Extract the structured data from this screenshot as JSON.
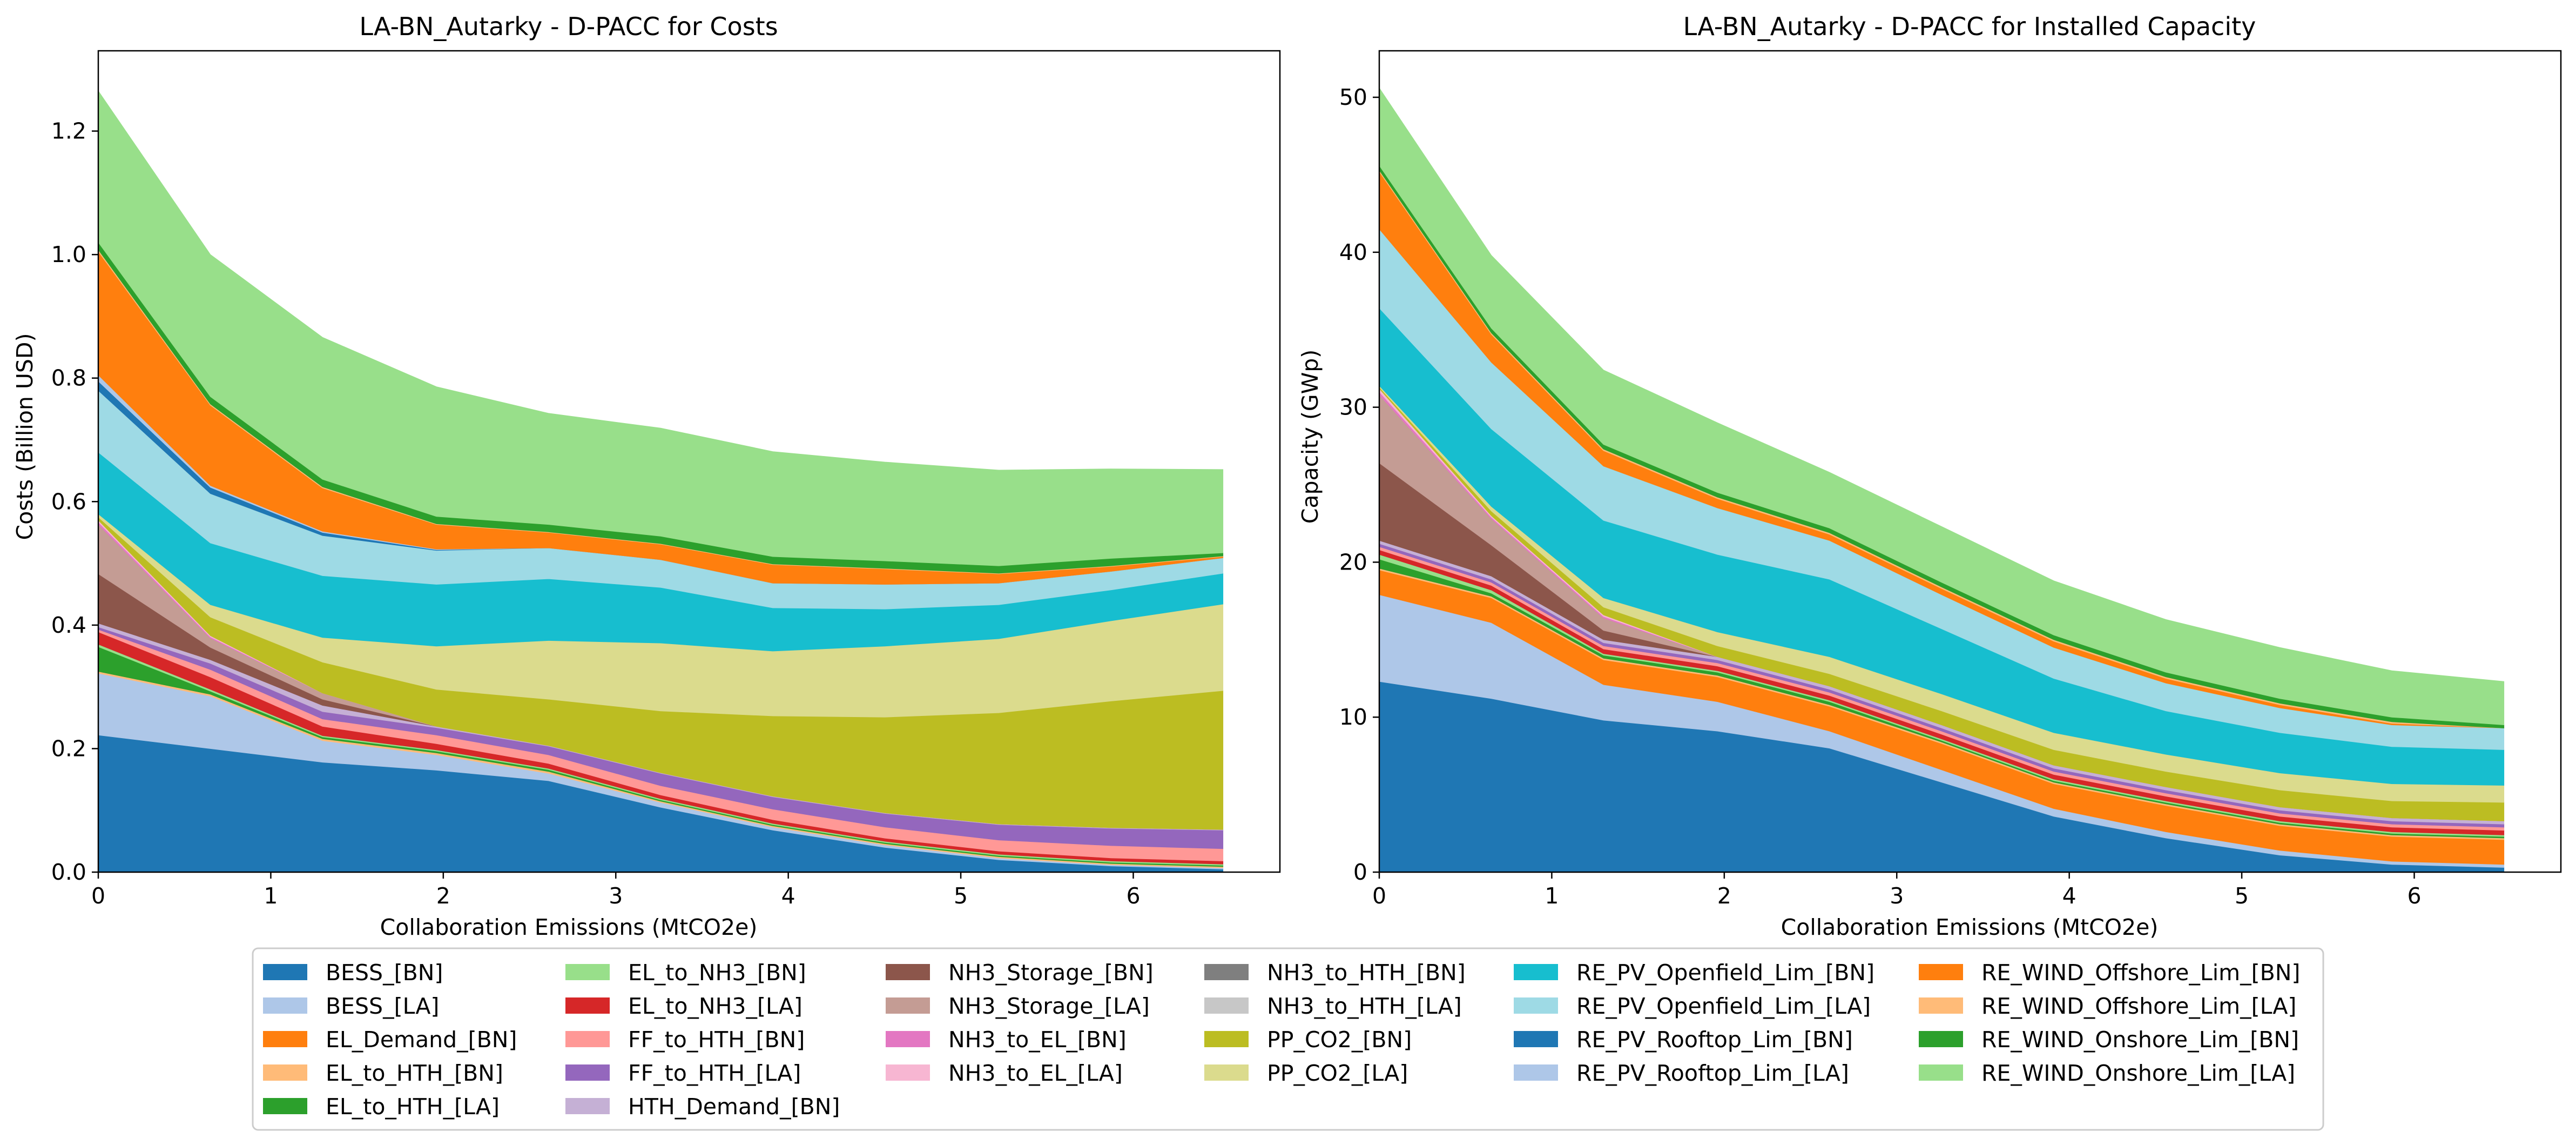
{
  "legend_entries": [
    {
      "label": "BESS_[BN]",
      "color": "#1f77b4"
    },
    {
      "label": "BESS_[LA]",
      "color": "#aec7e8"
    },
    {
      "label": "EL_Demand_[BN]",
      "color": "#ff7f0e"
    },
    {
      "label": "EL_to_HTH_[BN]",
      "color": "#ffbb78"
    },
    {
      "label": "EL_to_HTH_[LA]",
      "color": "#2ca02c"
    },
    {
      "label": "EL_to_NH3_[BN]",
      "color": "#98df8a"
    },
    {
      "label": "EL_to_NH3_[LA]",
      "color": "#d62728"
    },
    {
      "label": "FF_to_HTH_[BN]",
      "color": "#ff9896"
    },
    {
      "label": "FF_to_HTH_[LA]",
      "color": "#9467bd"
    },
    {
      "label": "HTH_Demand_[BN]",
      "color": "#c5b0d5"
    },
    {
      "label": "NH3_Storage_[BN]",
      "color": "#8c564b"
    },
    {
      "label": "NH3_Storage_[LA]",
      "color": "#c49c94"
    },
    {
      "label": "NH3_to_EL_[BN]",
      "color": "#e377c2"
    },
    {
      "label": "NH3_to_EL_[LA]",
      "color": "#f7b6d2"
    },
    {
      "label": "NH3_to_HTH_[BN]",
      "color": "#7f7f7f"
    },
    {
      "label": "NH3_to_HTH_[LA]",
      "color": "#c7c7c7"
    },
    {
      "label": "PP_CO2_[BN]",
      "color": "#bcbd22"
    },
    {
      "label": "PP_CO2_[LA]",
      "color": "#dbdb8d"
    },
    {
      "label": "RE_PV_Openfield_Lim_[BN]",
      "color": "#17becf"
    },
    {
      "label": "RE_PV_Openfield_Lim_[LA]",
      "color": "#9edae5"
    },
    {
      "label": "RE_PV_Rooftop_Lim_[BN]",
      "color": "#1f77b4"
    },
    {
      "label": "RE_PV_Rooftop_Lim_[LA]",
      "color": "#aec7e8"
    },
    {
      "label": "RE_WIND_Offshore_Lim_[BN]",
      "color": "#ff7f0e"
    },
    {
      "label": "RE_WIND_Offshore_Lim_[LA]",
      "color": "#ffbb78"
    },
    {
      "label": "RE_WIND_Onshore_Lim_[BN]",
      "color": "#2ca02c"
    },
    {
      "label": "RE_WIND_Onshore_Lim_[LA]",
      "color": "#98df8a"
    }
  ],
  "chart_data": [
    {
      "type": "area",
      "stacked": true,
      "title": "LA-BN_Autarky - D-PACC for Costs",
      "xlabel": "Collaboration Emissions (MtCO2e)",
      "ylabel": "Costs (Billion USD)",
      "xlim": [
        0,
        6.85
      ],
      "ylim": [
        0,
        1.33
      ],
      "xticks": [
        0,
        1,
        2,
        3,
        4,
        5,
        6
      ],
      "yticks": [
        0.0,
        0.2,
        0.4,
        0.6,
        0.8,
        1.0,
        1.2
      ],
      "x": [
        0,
        0.65,
        1.3,
        1.96,
        2.61,
        3.26,
        3.91,
        4.56,
        5.22,
        5.87,
        6.52
      ],
      "series": [
        {
          "name": "BESS_[BN]",
          "color": "#1f77b4",
          "values": [
            0.222,
            0.2,
            0.178,
            0.165,
            0.148,
            0.105,
            0.068,
            0.04,
            0.02,
            0.01,
            0.005
          ]
        },
        {
          "name": "BESS_[LA]",
          "color": "#aec7e8",
          "values": [
            0.1,
            0.085,
            0.035,
            0.025,
            0.012,
            0.008,
            0.005,
            0.004,
            0.003,
            0.002,
            0.002
          ]
        },
        {
          "name": "EL_Demand_[BN]",
          "color": "#ff7f0e",
          "values": [
            0,
            0,
            0,
            0,
            0,
            0,
            0,
            0,
            0,
            0,
            0
          ]
        },
        {
          "name": "EL_to_HTH_[BN]",
          "color": "#ffbb78",
          "values": [
            0.003,
            0.003,
            0.003,
            0.003,
            0.003,
            0.002,
            0.002,
            0.002,
            0.002,
            0.002,
            0.002
          ]
        },
        {
          "name": "EL_to_HTH_[LA]",
          "color": "#2ca02c",
          "values": [
            0.04,
            0.005,
            0.003,
            0.003,
            0.003,
            0.002,
            0.002,
            0.002,
            0.002,
            0.002,
            0.002
          ]
        },
        {
          "name": "EL_to_NH3_[BN]",
          "color": "#98df8a",
          "values": [
            0.004,
            0.003,
            0.002,
            0.002,
            0.002,
            0.002,
            0.002,
            0.002,
            0.002,
            0.002,
            0.002
          ]
        },
        {
          "name": "EL_to_NH3_[LA]",
          "color": "#d62728",
          "values": [
            0.02,
            0.02,
            0.015,
            0.01,
            0.008,
            0.006,
            0.006,
            0.005,
            0.005,
            0.005,
            0.005
          ]
        },
        {
          "name": "FF_to_HTH_[BN]",
          "color": "#ff9896",
          "values": [
            0.004,
            0.012,
            0.012,
            0.014,
            0.014,
            0.015,
            0.017,
            0.018,
            0.018,
            0.02,
            0.02
          ]
        },
        {
          "name": "FF_to_HTH_[LA]",
          "color": "#9467bd",
          "values": [
            0.004,
            0.01,
            0.012,
            0.012,
            0.014,
            0.02,
            0.02,
            0.022,
            0.025,
            0.028,
            0.03
          ]
        },
        {
          "name": "HTH_Demand_[BN]",
          "color": "#c5b0d5",
          "values": [
            0.006,
            0.006,
            0.01,
            0.002,
            0.001,
            0.001,
            0.001,
            0.001,
            0.001,
            0.001,
            0.001
          ]
        },
        {
          "name": "NH3_Storage_[BN]",
          "color": "#8c564b",
          "values": [
            0.08,
            0.02,
            0.01,
            0,
            0,
            0,
            0,
            0,
            0,
            0,
            0
          ]
        },
        {
          "name": "NH3_Storage_[LA]",
          "color": "#c49c94",
          "values": [
            0.08,
            0.015,
            0.01,
            0,
            0,
            0,
            0,
            0,
            0,
            0,
            0
          ]
        },
        {
          "name": "NH3_to_EL_[BN]",
          "color": "#e377c2",
          "values": [
            0.004,
            0.002,
            0,
            0,
            0,
            0,
            0,
            0,
            0,
            0,
            0
          ]
        },
        {
          "name": "NH3_to_EL_[LA]",
          "color": "#f7b6d2",
          "values": [
            0.003,
            0.002,
            0,
            0,
            0,
            0,
            0,
            0,
            0,
            0,
            0
          ]
        },
        {
          "name": "NH3_to_HTH_[BN]",
          "color": "#7f7f7f",
          "values": [
            0,
            0,
            0,
            0,
            0,
            0,
            0,
            0,
            0,
            0,
            0
          ]
        },
        {
          "name": "NH3_to_HTH_[LA]",
          "color": "#c7c7c7",
          "values": [
            0,
            0,
            0,
            0,
            0,
            0,
            0,
            0,
            0,
            0,
            0
          ]
        },
        {
          "name": "PP_CO2_[BN]",
          "color": "#bcbd22",
          "values": [
            0.005,
            0.03,
            0.05,
            0.06,
            0.075,
            0.1,
            0.13,
            0.155,
            0.18,
            0.205,
            0.225
          ]
        },
        {
          "name": "PP_CO2_[LA]",
          "color": "#dbdb8d",
          "values": [
            0.005,
            0.02,
            0.04,
            0.07,
            0.095,
            0.11,
            0.105,
            0.115,
            0.12,
            0.13,
            0.14
          ]
        },
        {
          "name": "RE_PV_Openfield_Lim_[BN]",
          "color": "#17becf",
          "values": [
            0.1,
            0.1,
            0.1,
            0.1,
            0.1,
            0.09,
            0.07,
            0.06,
            0.055,
            0.05,
            0.05
          ]
        },
        {
          "name": "RE_PV_Openfield_Lim_[LA]",
          "color": "#9edae5",
          "values": [
            0.1,
            0.08,
            0.065,
            0.055,
            0.05,
            0.045,
            0.04,
            0.04,
            0.035,
            0.03,
            0.025
          ]
        },
        {
          "name": "RE_PV_Rooftop_Lim_[BN]",
          "color": "#1f77b4",
          "values": [
            0.015,
            0.01,
            0.005,
            0.001,
            0,
            0,
            0,
            0,
            0,
            0,
            0
          ]
        },
        {
          "name": "RE_PV_Rooftop_Lim_[LA]",
          "color": "#aec7e8",
          "values": [
            0.01,
            0.003,
            0.002,
            0.001,
            0,
            0,
            0,
            0,
            0,
            0,
            0
          ]
        },
        {
          "name": "RE_WIND_Offshore_Lim_[BN]",
          "color": "#ff7f0e",
          "values": [
            0.2,
            0.13,
            0.07,
            0.04,
            0.025,
            0.025,
            0.03,
            0.025,
            0.015,
            0.008,
            0.002
          ]
        },
        {
          "name": "RE_WIND_Offshore_Lim_[LA]",
          "color": "#ffbb78",
          "values": [
            0.003,
            0.002,
            0.002,
            0.001,
            0.001,
            0.001,
            0.001,
            0.001,
            0.001,
            0.001,
            0.001
          ]
        },
        {
          "name": "RE_WIND_Onshore_Lim_[BN]",
          "color": "#2ca02c",
          "values": [
            0.012,
            0.012,
            0.012,
            0.012,
            0.012,
            0.012,
            0.012,
            0.012,
            0.012,
            0.012,
            0.005
          ]
        },
        {
          "name": "RE_WIND_Onshore_Lim_[LA]",
          "color": "#98df8a",
          "values": [
            0.245,
            0.23,
            0.23,
            0.21,
            0.18,
            0.175,
            0.17,
            0.16,
            0.155,
            0.145,
            0.135
          ]
        }
      ]
    },
    {
      "type": "area",
      "stacked": true,
      "title": "LA-BN_Autarky - D-PACC for Installed Capacity",
      "xlabel": "Collaboration Emissions (MtCO2e)",
      "ylabel": "Capacity (GWp)",
      "xlim": [
        0,
        6.85
      ],
      "ylim": [
        0,
        53
      ],
      "xticks": [
        0,
        1,
        2,
        3,
        4,
        5,
        6
      ],
      "yticks": [
        0,
        10,
        20,
        30,
        40,
        50
      ],
      "x": [
        0,
        0.65,
        1.3,
        1.96,
        2.61,
        3.26,
        3.91,
        4.56,
        5.22,
        5.87,
        6.52
      ],
      "series": [
        {
          "name": "BESS_[BN]",
          "color": "#1f77b4",
          "values": [
            12.3,
            11.2,
            9.8,
            9.1,
            8.0,
            5.8,
            3.6,
            2.2,
            1.1,
            0.5,
            0.3
          ]
        },
        {
          "name": "BESS_[LA]",
          "color": "#aec7e8",
          "values": [
            5.6,
            4.9,
            2.3,
            1.9,
            1.1,
            0.8,
            0.5,
            0.4,
            0.3,
            0.2,
            0.2
          ]
        },
        {
          "name": "EL_Demand_[BN]",
          "color": "#ff7f0e",
          "values": [
            1.6,
            1.6,
            1.6,
            1.6,
            1.6,
            1.7,
            1.6,
            1.7,
            1.6,
            1.6,
            1.6
          ]
        },
        {
          "name": "EL_to_HTH_[BN]",
          "color": "#ffbb78",
          "values": [
            0.1,
            0.1,
            0.1,
            0.1,
            0.1,
            0.1,
            0.1,
            0.1,
            0.1,
            0.1,
            0.1
          ]
        },
        {
          "name": "EL_to_HTH_[LA]",
          "color": "#2ca02c",
          "values": [
            0.6,
            0.2,
            0.2,
            0.2,
            0.2,
            0.1,
            0.1,
            0.1,
            0.1,
            0.1,
            0.1
          ]
        },
        {
          "name": "EL_to_NH3_[BN]",
          "color": "#98df8a",
          "values": [
            0.3,
            0.2,
            0.1,
            0.1,
            0.1,
            0.1,
            0.1,
            0.1,
            0.1,
            0.1,
            0.1
          ]
        },
        {
          "name": "EL_to_NH3_[LA]",
          "color": "#d62728",
          "values": [
            0.3,
            0.3,
            0.3,
            0.3,
            0.3,
            0.3,
            0.3,
            0.3,
            0.3,
            0.3,
            0.3
          ]
        },
        {
          "name": "FF_to_HTH_[BN]",
          "color": "#ff9896",
          "values": [
            0.2,
            0.2,
            0.2,
            0.2,
            0.2,
            0.2,
            0.2,
            0.2,
            0.2,
            0.2,
            0.2
          ]
        },
        {
          "name": "FF_to_HTH_[LA]",
          "color": "#9467bd",
          "values": [
            0.2,
            0.2,
            0.2,
            0.2,
            0.2,
            0.2,
            0.2,
            0.2,
            0.2,
            0.2,
            0.2
          ]
        },
        {
          "name": "HTH_Demand_[BN]",
          "color": "#c5b0d5",
          "values": [
            0.2,
            0.2,
            0.2,
            0.2,
            0.2,
            0.2,
            0.2,
            0.2,
            0.2,
            0.2,
            0.2
          ]
        },
        {
          "name": "NH3_Storage_[BN]",
          "color": "#8c564b",
          "values": [
            5.0,
            2.0,
            0.6,
            0,
            0,
            0,
            0,
            0,
            0,
            0,
            0
          ]
        },
        {
          "name": "NH3_Storage_[LA]",
          "color": "#c49c94",
          "values": [
            4.4,
            1.7,
            0.8,
            0,
            0,
            0,
            0,
            0,
            0,
            0,
            0
          ]
        },
        {
          "name": "NH3_to_EL_[BN]",
          "color": "#e377c2",
          "values": [
            0.2,
            0.1,
            0.1,
            0,
            0,
            0,
            0,
            0,
            0,
            0,
            0
          ]
        },
        {
          "name": "NH3_to_EL_[LA]",
          "color": "#f7b6d2",
          "values": [
            0.2,
            0.1,
            0.1,
            0,
            0,
            0,
            0,
            0,
            0,
            0,
            0
          ]
        },
        {
          "name": "NH3_to_HTH_[BN]",
          "color": "#7f7f7f",
          "values": [
            0,
            0,
            0,
            0,
            0,
            0,
            0,
            0,
            0,
            0,
            0
          ]
        },
        {
          "name": "NH3_to_HTH_[LA]",
          "color": "#c7c7c7",
          "values": [
            0,
            0,
            0,
            0,
            0,
            0,
            0,
            0,
            0,
            0,
            0
          ]
        },
        {
          "name": "PP_CO2_[BN]",
          "color": "#bcbd22",
          "values": [
            0.1,
            0.3,
            0.5,
            0.7,
            0.8,
            0.9,
            1.0,
            1.0,
            1.1,
            1.1,
            1.2
          ]
        },
        {
          "name": "PP_CO2_[LA]",
          "color": "#dbdb8d",
          "values": [
            0.1,
            0.3,
            0.6,
            0.9,
            1.1,
            1.1,
            1.1,
            1.1,
            1.1,
            1.1,
            1.1
          ]
        },
        {
          "name": "RE_PV_Openfield_Lim_[BN]",
          "color": "#17becf",
          "values": [
            5.0,
            5.0,
            5.0,
            5.0,
            5.0,
            4.2,
            3.5,
            2.8,
            2.6,
            2.4,
            2.3
          ]
        },
        {
          "name": "RE_PV_Openfield_Lim_[LA]",
          "color": "#9edae5",
          "values": [
            5.1,
            4.3,
            3.5,
            3.0,
            2.5,
            2.2,
            2.0,
            1.8,
            1.6,
            1.4,
            1.4
          ]
        },
        {
          "name": "RE_PV_Rooftop_Lim_[BN]",
          "color": "#1f77b4",
          "values": [
            0,
            0,
            0,
            0,
            0,
            0,
            0,
            0,
            0,
            0,
            0
          ]
        },
        {
          "name": "RE_PV_Rooftop_Lim_[LA]",
          "color": "#aec7e8",
          "values": [
            0,
            0,
            0,
            0,
            0,
            0,
            0,
            0,
            0,
            0,
            0
          ]
        },
        {
          "name": "RE_WIND_Offshore_Lim_[BN]",
          "color": "#ff7f0e",
          "values": [
            3.7,
            1.8,
            1.0,
            0.6,
            0.4,
            0.4,
            0.4,
            0.3,
            0.2,
            0.1,
            0.0
          ]
        },
        {
          "name": "RE_WIND_Offshore_Lim_[LA]",
          "color": "#ffbb78",
          "values": [
            0.1,
            0.1,
            0.1,
            0.1,
            0.1,
            0.1,
            0.1,
            0.1,
            0.1,
            0.1,
            0.0
          ]
        },
        {
          "name": "RE_WIND_Onshore_Lim_[BN]",
          "color": "#2ca02c",
          "values": [
            0.3,
            0.3,
            0.3,
            0.3,
            0.3,
            0.3,
            0.3,
            0.3,
            0.3,
            0.3,
            0.2
          ]
        },
        {
          "name": "RE_WIND_Onshore_Lim_[LA]",
          "color": "#98df8a",
          "values": [
            5.0,
            4.7,
            4.8,
            4.5,
            3.6,
            3.6,
            3.5,
            3.4,
            3.3,
            3.0,
            2.8
          ]
        }
      ]
    }
  ]
}
